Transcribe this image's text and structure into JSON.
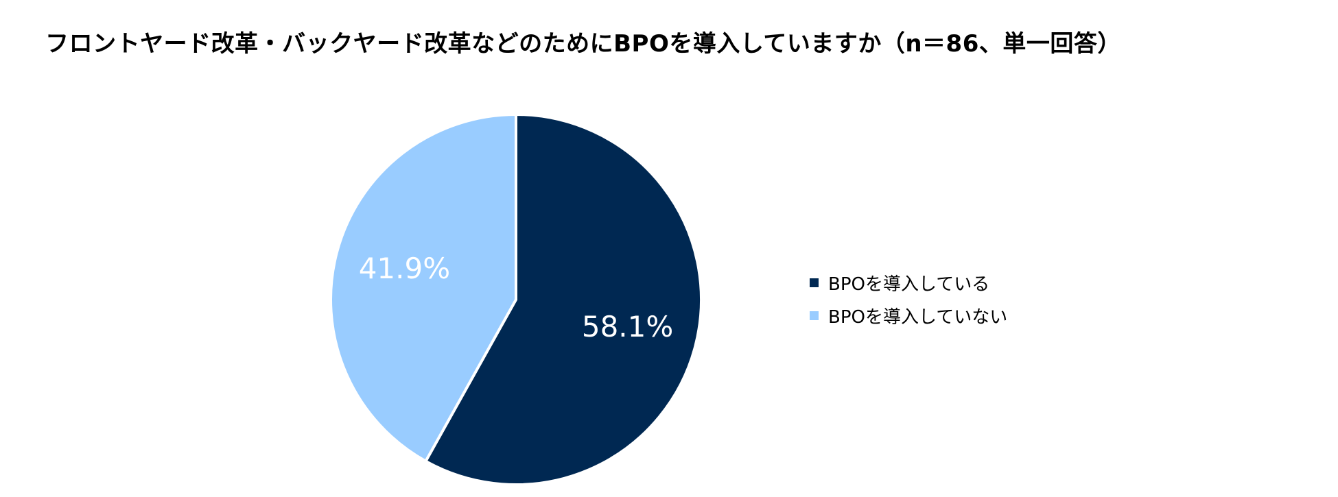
{
  "chart_data": {
    "type": "pie",
    "title": "フロントヤード改革・バックヤード改革などのためにBPOを導入していますか（n＝86、単一回答）",
    "categories": [
      "BPOを導入している",
      "BPOを導入していない"
    ],
    "values": [
      58.1,
      41.9
    ],
    "data_labels": [
      "58.1%",
      "41.9%"
    ],
    "colors": [
      "#002852",
      "#99CCFF"
    ],
    "label_colors": [
      "#ffffff",
      "#ffffff"
    ],
    "start_angle_deg": 0,
    "direction": "clockwise",
    "legend_placement": "right"
  }
}
